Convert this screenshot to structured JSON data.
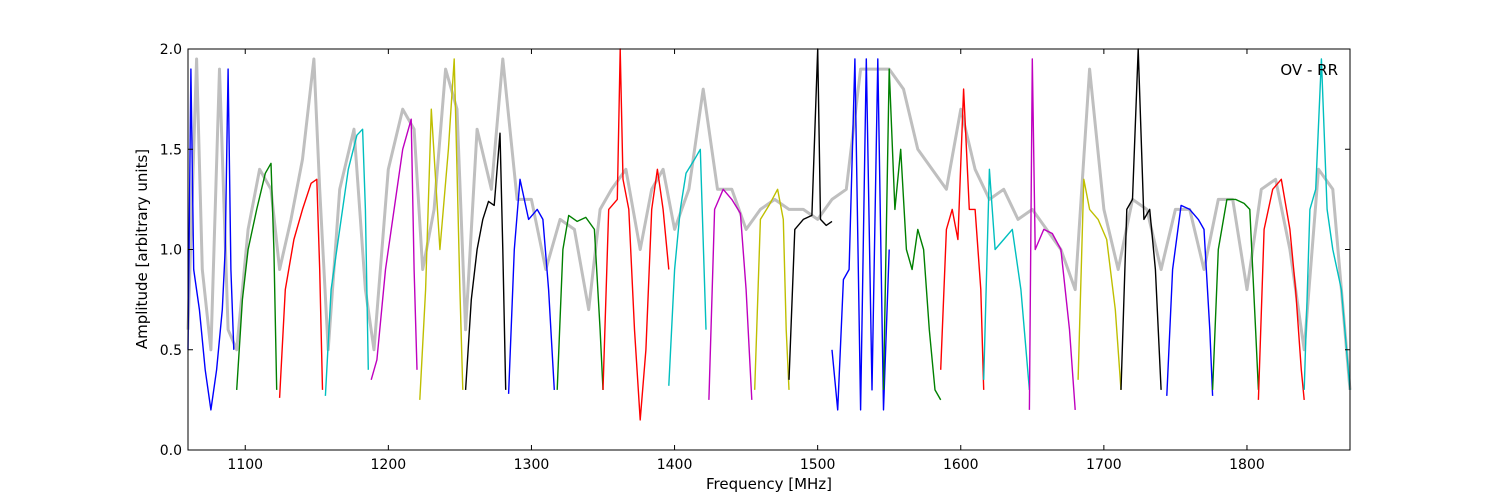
{
  "chart_data": {
    "type": "line",
    "title": "",
    "xlabel": "Frequency [MHz]",
    "ylabel": "Amplitude [arbitrary units]",
    "annotation": "OV - RR",
    "xlim": [
      1060,
      1872
    ],
    "ylim": [
      0.0,
      2.0
    ],
    "xticks": [
      1100,
      1200,
      1300,
      1400,
      1500,
      1600,
      1700,
      1800
    ],
    "yticks": [
      0.0,
      0.5,
      1.0,
      1.5,
      2.0
    ],
    "xtick_labels": [
      "1100",
      "1200",
      "1300",
      "1400",
      "1500",
      "1600",
      "1700",
      "1800"
    ],
    "ytick_labels": [
      "0.0",
      "0.5",
      "1.0",
      "1.5",
      "2.0"
    ],
    "grid": false,
    "legend": "none",
    "background_series": {
      "color": "#bfbfbf",
      "x": [
        1060,
        1066,
        1070,
        1076,
        1082,
        1088,
        1094,
        1102,
        1110,
        1118,
        1124,
        1132,
        1140,
        1148,
        1152,
        1158,
        1166,
        1176,
        1184,
        1190,
        1200,
        1210,
        1218,
        1224,
        1232,
        1240,
        1248,
        1254,
        1262,
        1272,
        1280,
        1290,
        1300,
        1310,
        1320,
        1330,
        1340,
        1348,
        1356,
        1366,
        1376,
        1384,
        1392,
        1400,
        1410,
        1420,
        1430,
        1440,
        1450,
        1460,
        1470,
        1480,
        1490,
        1500,
        1510,
        1520,
        1530,
        1540,
        1550,
        1560,
        1570,
        1580,
        1590,
        1600,
        1610,
        1620,
        1630,
        1640,
        1650,
        1660,
        1670,
        1680,
        1690,
        1700,
        1710,
        1720,
        1730,
        1740,
        1750,
        1760,
        1770,
        1780,
        1790,
        1800,
        1810,
        1820,
        1830,
        1840,
        1850,
        1860,
        1872
      ],
      "y": [
        0.6,
        1.95,
        0.9,
        0.5,
        1.9,
        0.6,
        0.5,
        1.1,
        1.4,
        1.3,
        0.9,
        1.15,
        1.45,
        1.95,
        1.3,
        0.5,
        1.3,
        1.6,
        0.8,
        0.5,
        1.4,
        1.7,
        1.6,
        0.9,
        1.2,
        1.9,
        1.7,
        0.6,
        1.6,
        1.3,
        1.95,
        1.25,
        1.25,
        0.9,
        1.15,
        1.1,
        0.7,
        1.2,
        1.3,
        1.4,
        1.0,
        1.3,
        1.4,
        1.1,
        1.3,
        1.8,
        1.3,
        1.3,
        1.1,
        1.2,
        1.25,
        1.2,
        1.2,
        1.15,
        1.25,
        1.3,
        1.9,
        1.9,
        1.9,
        1.8,
        1.5,
        1.4,
        1.3,
        1.7,
        1.4,
        1.25,
        1.3,
        1.15,
        1.2,
        1.1,
        1.0,
        0.8,
        1.9,
        1.2,
        0.9,
        1.25,
        1.2,
        0.9,
        1.2,
        1.2,
        0.9,
        1.25,
        1.25,
        0.8,
        1.3,
        1.35,
        1.0,
        0.5,
        1.4,
        1.3,
        0.3
      ]
    },
    "series": [
      {
        "color": "#0000ff",
        "x": [
          1060,
          1062,
          1064,
          1068,
          1072,
          1076,
          1080,
          1084,
          1086,
          1088,
          1090,
          1092
        ],
        "y": [
          0.5,
          1.9,
          0.9,
          0.7,
          0.4,
          0.2,
          0.4,
          0.7,
          1.0,
          1.9,
          0.9,
          0.5
        ]
      },
      {
        "color": "#008000",
        "x": [
          1094,
          1098,
          1102,
          1108,
          1114,
          1118,
          1120,
          1122
        ],
        "y": [
          0.3,
          0.75,
          1.0,
          1.2,
          1.38,
          1.43,
          1.0,
          0.3
        ]
      },
      {
        "color": "#ff0000",
        "x": [
          1124,
          1128,
          1134,
          1140,
          1146,
          1150,
          1152,
          1154
        ],
        "y": [
          0.26,
          0.8,
          1.05,
          1.2,
          1.33,
          1.35,
          0.9,
          0.3
        ]
      },
      {
        "color": "#00bfbf",
        "x": [
          1156,
          1160,
          1166,
          1172,
          1178,
          1182,
          1184,
          1186
        ],
        "y": [
          0.27,
          0.8,
          1.1,
          1.4,
          1.57,
          1.6,
          1.2,
          0.4
        ]
      },
      {
        "color": "#bf00bf",
        "x": [
          1188,
          1192,
          1198,
          1204,
          1210,
          1216,
          1218,
          1220
        ],
        "y": [
          0.35,
          0.45,
          0.9,
          1.2,
          1.5,
          1.65,
          0.9,
          0.4
        ]
      },
      {
        "color": "#bfbf00",
        "x": [
          1222,
          1226,
          1230,
          1236,
          1242,
          1246,
          1248,
          1250,
          1252
        ],
        "y": [
          0.25,
          0.8,
          1.7,
          1.0,
          1.5,
          1.95,
          1.4,
          0.8,
          0.3
        ]
      },
      {
        "color": "#000000",
        "x": [
          1254,
          1258,
          1262,
          1266,
          1270,
          1274,
          1278,
          1280,
          1282
        ],
        "y": [
          0.3,
          0.75,
          1.0,
          1.15,
          1.24,
          1.22,
          1.58,
          1.0,
          0.3
        ]
      },
      {
        "color": "#0000ff",
        "x": [
          1284,
          1288,
          1292,
          1298,
          1304,
          1308,
          1312,
          1316
        ],
        "y": [
          0.28,
          1.0,
          1.35,
          1.15,
          1.2,
          1.15,
          0.8,
          0.3
        ]
      },
      {
        "color": "#008000",
        "x": [
          1318,
          1322,
          1326,
          1332,
          1338,
          1344,
          1348,
          1350
        ],
        "y": [
          0.3,
          1.0,
          1.17,
          1.14,
          1.16,
          1.1,
          0.6,
          0.3
        ]
      },
      {
        "color": "#ff0000",
        "x": [
          1350,
          1354,
          1360,
          1362,
          1364,
          1368,
          1372,
          1376,
          1380,
          1384,
          1388,
          1392,
          1396
        ],
        "y": [
          0.3,
          1.2,
          1.25,
          2.0,
          1.35,
          1.2,
          0.6,
          0.15,
          0.5,
          1.2,
          1.4,
          1.2,
          0.9
        ]
      },
      {
        "color": "#00bfbf",
        "x": [
          1396,
          1400,
          1404,
          1408,
          1414,
          1418,
          1422
        ],
        "y": [
          0.32,
          0.9,
          1.2,
          1.38,
          1.45,
          1.5,
          0.6
        ]
      },
      {
        "color": "#bf00bf",
        "x": [
          1424,
          1428,
          1434,
          1440,
          1446,
          1450,
          1454
        ],
        "y": [
          0.25,
          1.2,
          1.3,
          1.25,
          1.18,
          0.8,
          0.25
        ]
      },
      {
        "color": "#bfbf00",
        "x": [
          1456,
          1460,
          1466,
          1472,
          1476,
          1478,
          1480
        ],
        "y": [
          0.3,
          1.15,
          1.22,
          1.3,
          1.15,
          0.6,
          0.3
        ]
      },
      {
        "color": "#000000",
        "x": [
          1480,
          1484,
          1490,
          1496,
          1500,
          1502,
          1506,
          1510
        ],
        "y": [
          0.35,
          1.1,
          1.15,
          1.17,
          2.0,
          1.15,
          1.12,
          1.14
        ]
      },
      {
        "color": "#0000ff",
        "x": [
          1510,
          1514,
          1518,
          1522,
          1526,
          1530,
          1534,
          1538,
          1542,
          1546,
          1550
        ],
        "y": [
          0.5,
          0.2,
          0.85,
          0.9,
          1.95,
          0.2,
          1.95,
          0.3,
          1.95,
          0.2,
          1.0
        ]
      },
      {
        "color": "#008000",
        "x": [
          1546,
          1550,
          1554,
          1558,
          1562,
          1566,
          1570,
          1574,
          1578,
          1582,
          1586
        ],
        "y": [
          0.3,
          1.9,
          1.2,
          1.5,
          1.0,
          0.9,
          1.1,
          1.0,
          0.6,
          0.3,
          0.25
        ]
      },
      {
        "color": "#ff0000",
        "x": [
          1586,
          1590,
          1594,
          1598,
          1602,
          1606,
          1610,
          1614,
          1616
        ],
        "y": [
          0.4,
          1.1,
          1.2,
          1.05,
          1.8,
          1.2,
          1.2,
          0.8,
          0.3
        ]
      },
      {
        "color": "#00bfbf",
        "x": [
          1616,
          1620,
          1624,
          1630,
          1636,
          1642,
          1648
        ],
        "y": [
          0.35,
          1.4,
          1.0,
          1.05,
          1.1,
          0.8,
          0.3
        ]
      },
      {
        "color": "#bf00bf",
        "x": [
          1648,
          1650,
          1652,
          1658,
          1664,
          1670,
          1676,
          1680
        ],
        "y": [
          0.2,
          1.95,
          1.0,
          1.1,
          1.08,
          1.0,
          0.6,
          0.2
        ]
      },
      {
        "color": "#bfbf00",
        "x": [
          1682,
          1686,
          1690,
          1696,
          1702,
          1708,
          1712
        ],
        "y": [
          0.35,
          1.35,
          1.2,
          1.15,
          1.05,
          0.7,
          0.3
        ]
      },
      {
        "color": "#000000",
        "x": [
          1712,
          1716,
          1720,
          1724,
          1728,
          1732,
          1736,
          1740
        ],
        "y": [
          0.3,
          1.2,
          1.25,
          2.0,
          1.15,
          1.2,
          0.9,
          0.3
        ]
      },
      {
        "color": "#0000ff",
        "x": [
          1744,
          1748,
          1754,
          1760,
          1766,
          1770,
          1774,
          1776
        ],
        "y": [
          0.27,
          0.9,
          1.22,
          1.2,
          1.15,
          1.1,
          0.6,
          0.27
        ]
      },
      {
        "color": "#008000",
        "x": [
          1776,
          1780,
          1786,
          1792,
          1798,
          1802,
          1806,
          1808
        ],
        "y": [
          0.3,
          1.0,
          1.25,
          1.25,
          1.23,
          1.2,
          0.6,
          0.3
        ]
      },
      {
        "color": "#ff0000",
        "x": [
          1808,
          1812,
          1818,
          1824,
          1830,
          1834,
          1838,
          1840
        ],
        "y": [
          0.25,
          1.1,
          1.3,
          1.35,
          1.1,
          0.8,
          0.4,
          0.25
        ]
      },
      {
        "color": "#00bfbf",
        "x": [
          1840,
          1844,
          1848,
          1852,
          1856,
          1860,
          1866,
          1872
        ],
        "y": [
          0.3,
          1.2,
          1.3,
          1.95,
          1.2,
          1.0,
          0.8,
          0.3
        ]
      }
    ]
  }
}
